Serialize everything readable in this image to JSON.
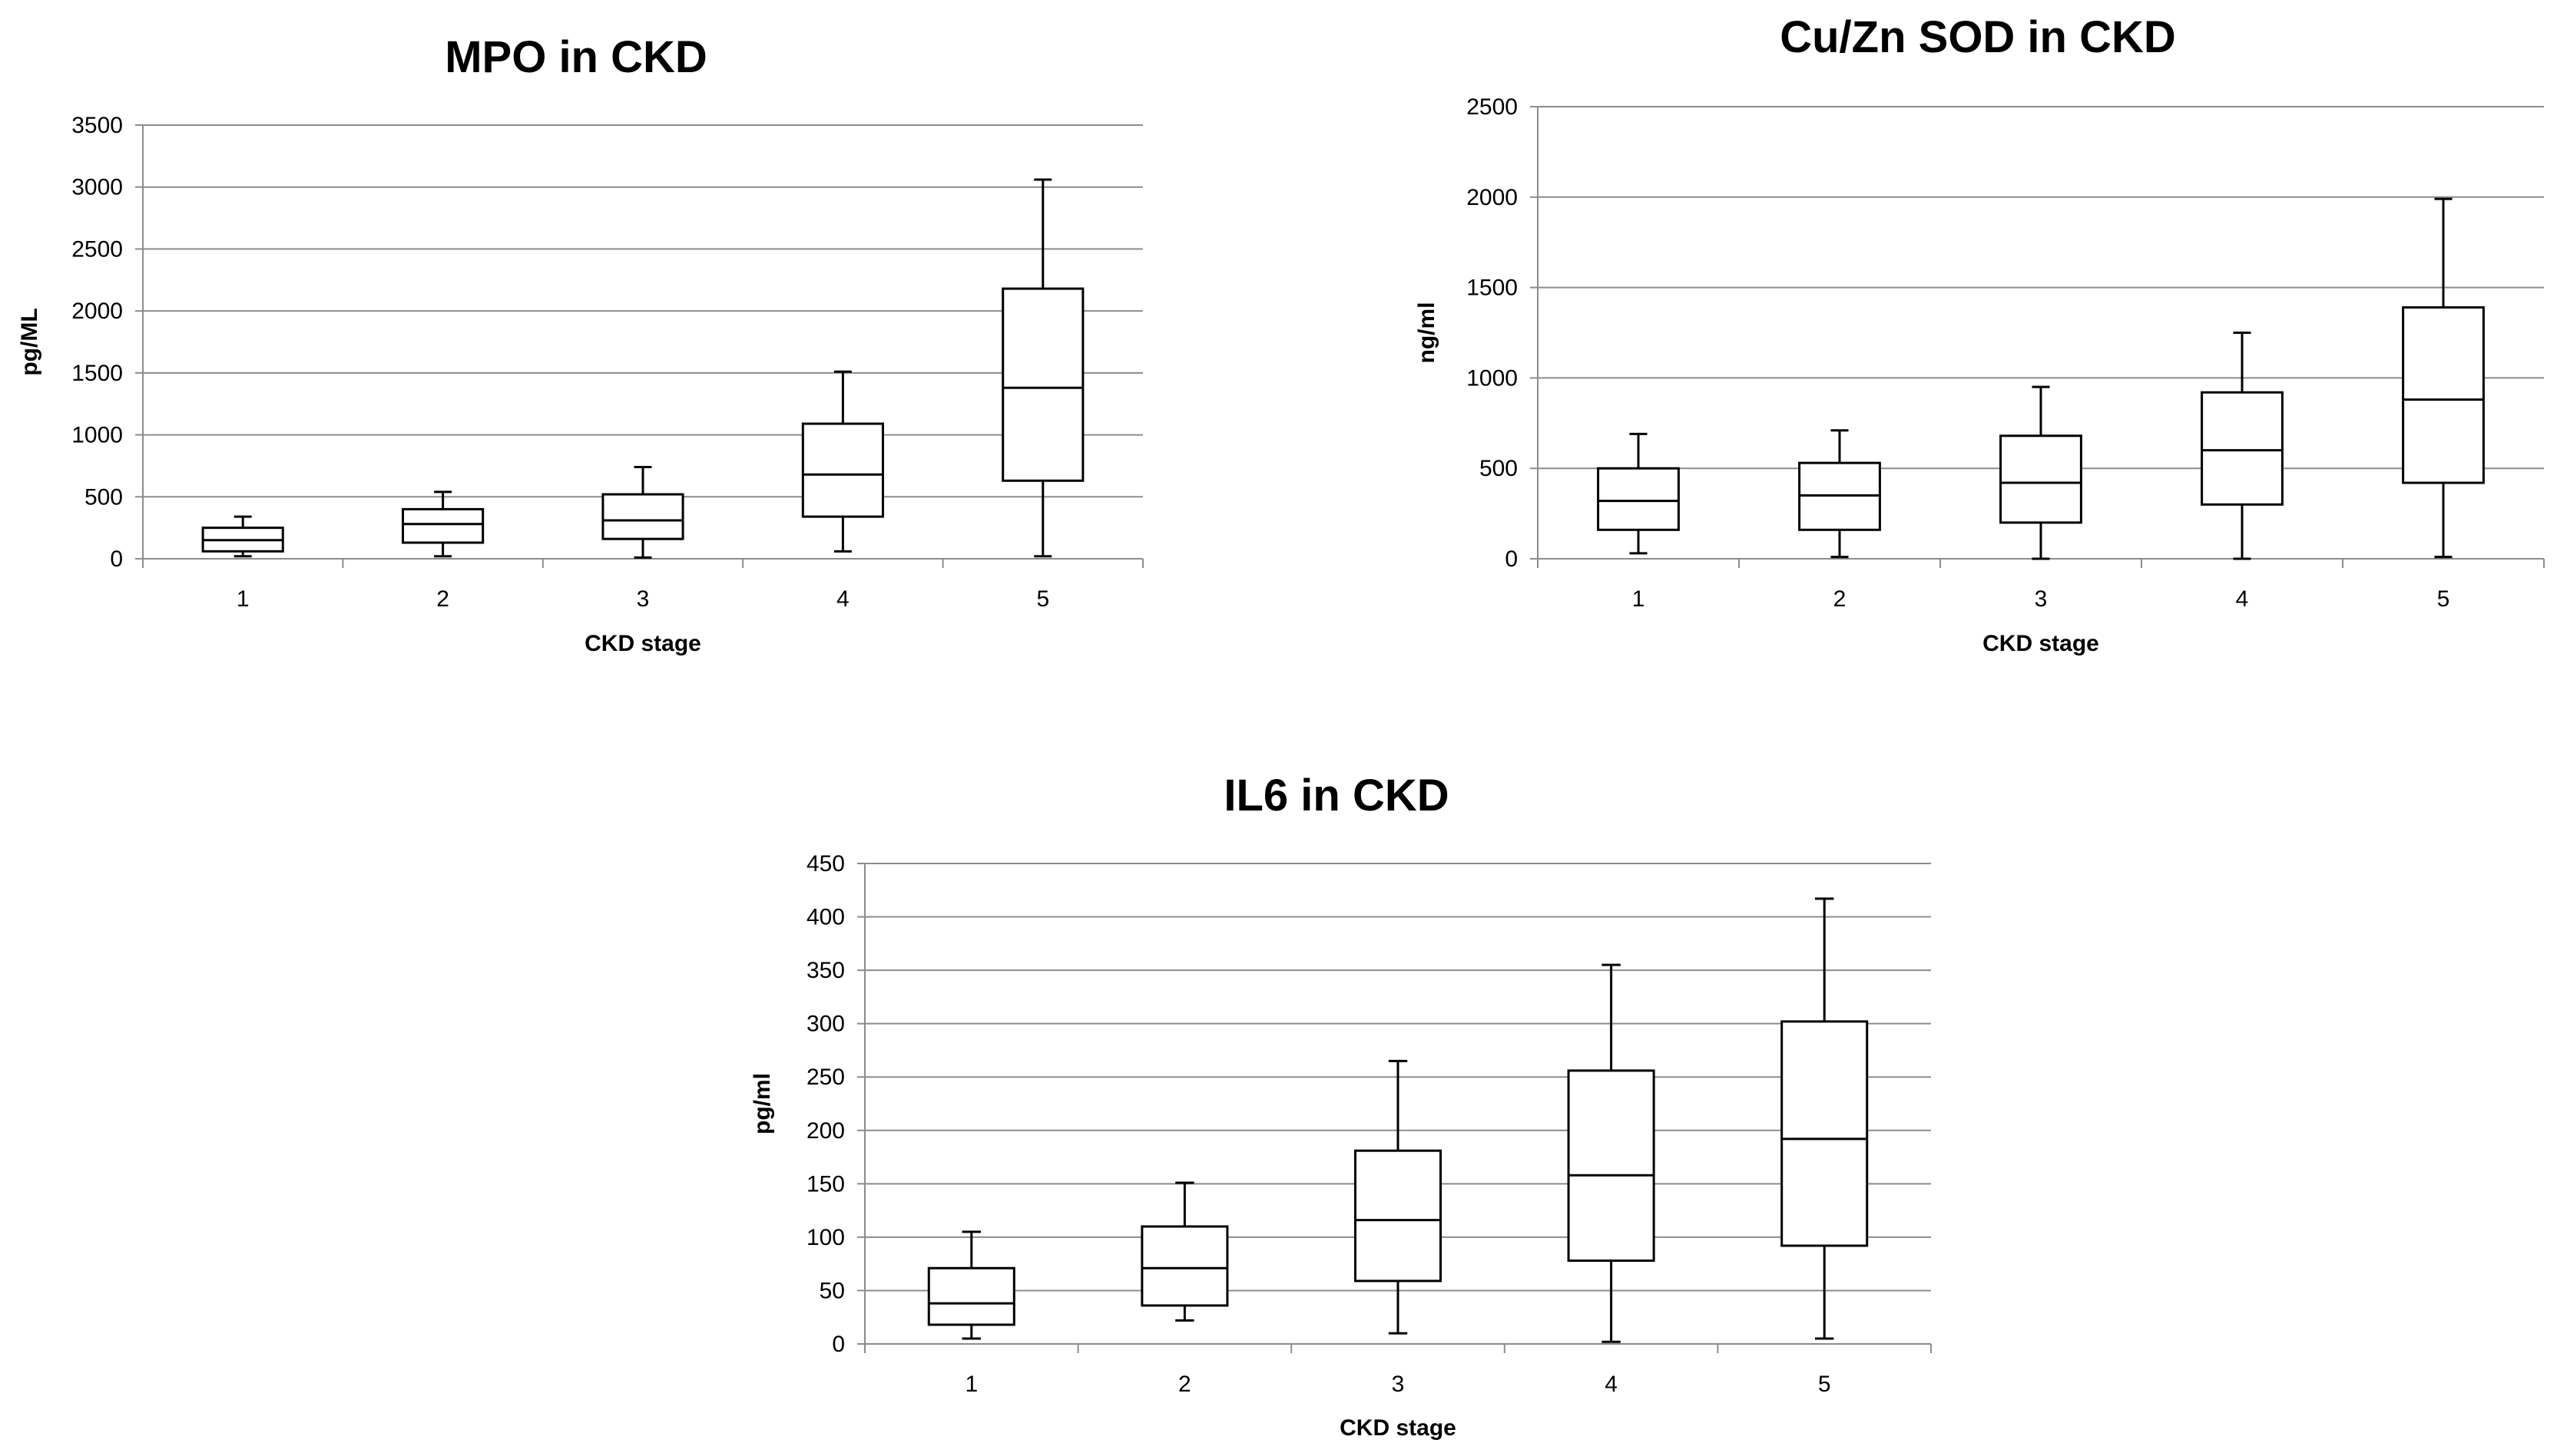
{
  "chart_data": [
    {
      "type": "boxplot",
      "title": "MPO in CKD",
      "xlabel": "CKD stage",
      "ylabel": "pg/ML",
      "categories": [
        "1",
        "2",
        "3",
        "4",
        "5"
      ],
      "ylim": [
        0,
        3500
      ],
      "yticks": [
        0,
        500,
        1000,
        1500,
        2000,
        2500,
        3000,
        3500
      ],
      "grid": true,
      "boxes": [
        {
          "min": 20,
          "q1": 60,
          "median": 150,
          "q3": 250,
          "max": 340
        },
        {
          "min": 20,
          "q1": 130,
          "median": 280,
          "q3": 400,
          "max": 540
        },
        {
          "min": 10,
          "q1": 160,
          "median": 310,
          "q3": 520,
          "max": 740
        },
        {
          "min": 60,
          "q1": 340,
          "median": 680,
          "q3": 1090,
          "max": 1510
        },
        {
          "min": 20,
          "q1": 630,
          "median": 1380,
          "q3": 2180,
          "max": 3060
        }
      ]
    },
    {
      "type": "boxplot",
      "title": "Cu/Zn SOD in CKD",
      "xlabel": "CKD stage",
      "ylabel": "ng/ml",
      "categories": [
        "1",
        "2",
        "3",
        "4",
        "5"
      ],
      "ylim": [
        0,
        2500
      ],
      "yticks": [
        0,
        500,
        1000,
        1500,
        2000,
        2500
      ],
      "grid": true,
      "boxes": [
        {
          "min": 30,
          "q1": 160,
          "median": 320,
          "q3": 500,
          "max": 690
        },
        {
          "min": 10,
          "q1": 160,
          "median": 350,
          "q3": 530,
          "max": 710
        },
        {
          "min": 0,
          "q1": 200,
          "median": 420,
          "q3": 680,
          "max": 950
        },
        {
          "min": 0,
          "q1": 300,
          "median": 600,
          "q3": 920,
          "max": 1250
        },
        {
          "min": 10,
          "q1": 420,
          "median": 880,
          "q3": 1390,
          "max": 1990
        }
      ]
    },
    {
      "type": "boxplot",
      "title": "IL6  in CKD",
      "xlabel": "CKD stage",
      "ylabel": "pg/ml",
      "categories": [
        "1",
        "2",
        "3",
        "4",
        "5"
      ],
      "ylim": [
        0,
        450
      ],
      "yticks": [
        0,
        50,
        100,
        150,
        200,
        250,
        300,
        350,
        400,
        450
      ],
      "grid": true,
      "boxes": [
        {
          "min": 5,
          "q1": 18,
          "median": 38,
          "q3": 71,
          "max": 105
        },
        {
          "min": 22,
          "q1": 36,
          "median": 71,
          "q3": 110,
          "max": 151
        },
        {
          "min": 10,
          "q1": 59,
          "median": 116,
          "q3": 181,
          "max": 265
        },
        {
          "min": 2,
          "q1": 78,
          "median": 158,
          "q3": 256,
          "max": 355
        },
        {
          "min": 5,
          "q1": 92,
          "median": 192,
          "q3": 302,
          "max": 417
        }
      ]
    }
  ]
}
